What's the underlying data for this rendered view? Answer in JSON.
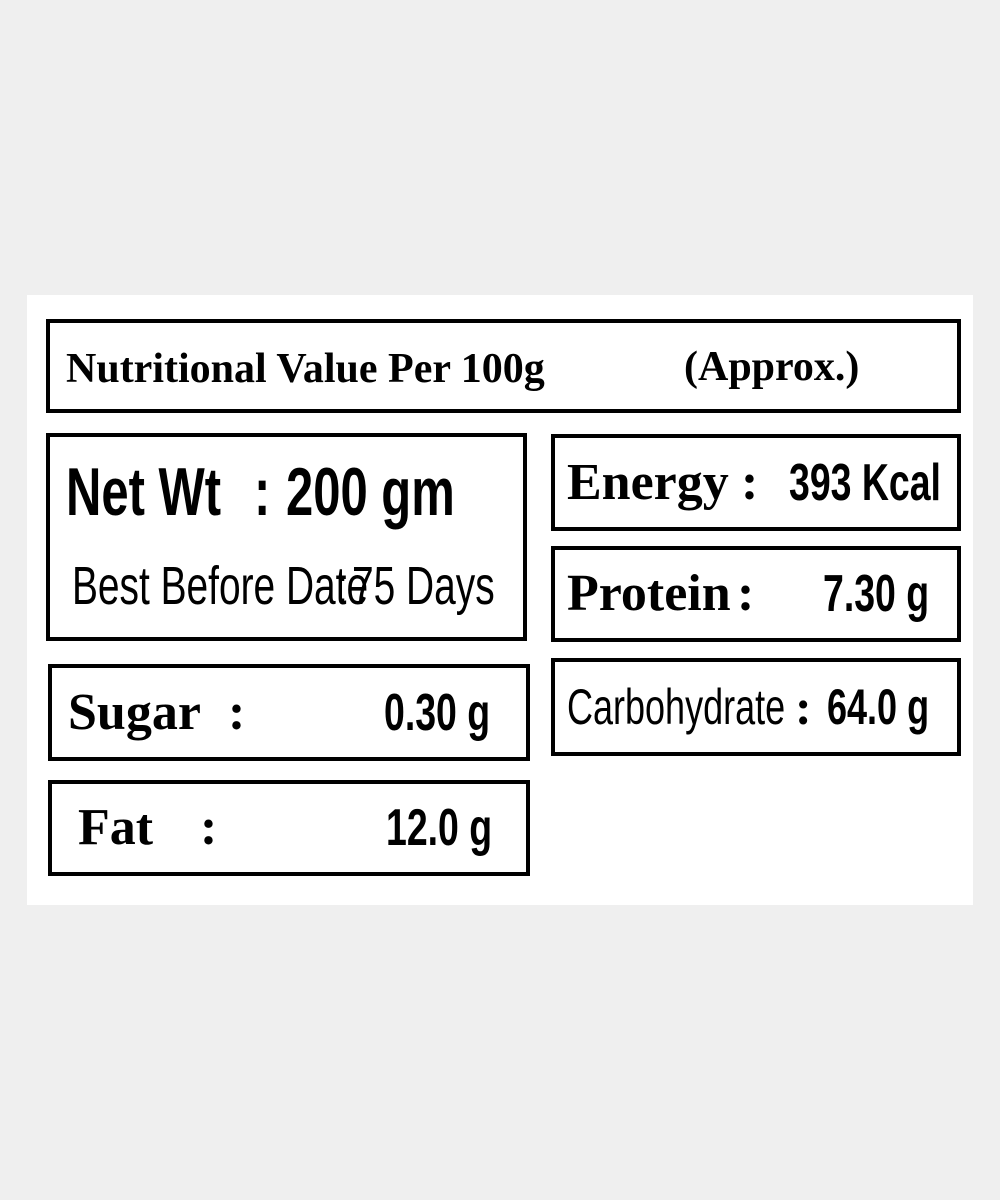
{
  "header": {
    "title": "Nutritional Value Per 100g",
    "note": "(Approx.)"
  },
  "net_weight": {
    "label": "Net Wt",
    "separator": ":",
    "value": "200 gm"
  },
  "best_before": {
    "label": "Best Before Date",
    "separator": ":",
    "value": "75 Days"
  },
  "nutrients": [
    {
      "label": "Energy",
      "separator": ":",
      "value": "393 Kcal"
    },
    {
      "label": "Protein",
      "separator": ":",
      "value": "7.30 g"
    },
    {
      "label": "Carbohydrate",
      "separator": ":",
      "value": "64.0 g"
    },
    {
      "label": "Sugar",
      "separator": ":",
      "value": "0.30 g"
    },
    {
      "label": "Fat",
      "separator": ":",
      "value": "12.0 g"
    }
  ]
}
